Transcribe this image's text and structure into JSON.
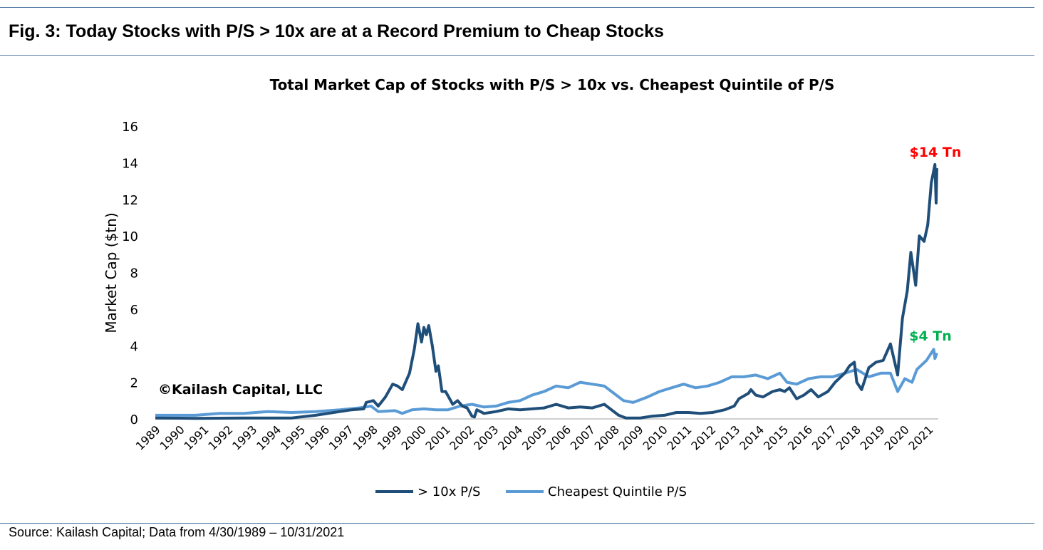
{
  "figure": {
    "title": "Fig. 3: Today Stocks with P/S > 10x are at a Record Premium to Cheap Stocks",
    "source": "Source: Kailash Capital; Data from 4/30/1989 – 10/31/2021"
  },
  "chart_data": {
    "type": "line",
    "title": "Total Market Cap of Stocks with P/S > 10x vs. Cheapest Quintile of P/S",
    "xlabel": "",
    "ylabel": "Market Cap ($tn)",
    "ylim": [
      0,
      16
    ],
    "yticks": [
      0,
      2,
      4,
      6,
      8,
      10,
      12,
      14,
      16
    ],
    "xlim": [
      1989.33,
      2021.83
    ],
    "xticks": [
      "1989",
      "1990",
      "1991",
      "1992",
      "1993",
      "1994",
      "1995",
      "1996",
      "1997",
      "1998",
      "1999",
      "2000",
      "2001",
      "2002",
      "2003",
      "2004",
      "2005",
      "2006",
      "2007",
      "2008",
      "2009",
      "2010",
      "2011",
      "2012",
      "2013",
      "2014",
      "2015",
      "2016",
      "2017",
      "2018",
      "2019",
      "2020",
      "2021"
    ],
    "grid": false,
    "legend": "bottom",
    "watermark": "©Kailash Capital, LLC",
    "annotations": [
      {
        "text": "$14 Tn",
        "color": "#ff0000",
        "series": 0
      },
      {
        "text": "$4 Tn",
        "color": "#00b050",
        "series": 1
      }
    ],
    "series": [
      {
        "name": "> 10x P/S",
        "color": "#1f4e79",
        "x": [
          1989.33,
          1991,
          1993,
          1995,
          1996,
          1996.5,
          1997,
          1997.5,
          1998,
          1998.1,
          1998.4,
          1998.6,
          1998.9,
          1999.2,
          1999.4,
          1999.6,
          1999.9,
          2000.1,
          2000.25,
          2000.4,
          2000.5,
          2000.6,
          2000.7,
          2000.85,
          2001.0,
          2001.1,
          2001.25,
          2001.4,
          2001.7,
          2001.9,
          2002.1,
          2002.3,
          2002.5,
          2002.6,
          2002.7,
          2003,
          2003.5,
          2004,
          2004.5,
          2005,
          2005.5,
          2006,
          2006.5,
          2007,
          2007.5,
          2008,
          2008.3,
          2008.6,
          2008.9,
          2009.5,
          2010,
          2010.5,
          2011,
          2011.5,
          2012,
          2012.5,
          2013,
          2013.4,
          2013.6,
          2014,
          2014.1,
          2014.3,
          2014.6,
          2015,
          2015.3,
          2015.5,
          2015.7,
          2016,
          2016.3,
          2016.6,
          2016.9,
          2017.3,
          2017.6,
          2018,
          2018.2,
          2018.4,
          2018.5,
          2018.7,
          2019,
          2019.3,
          2019.6,
          2019.9,
          2020.2,
          2020.4,
          2020.6,
          2020.75,
          2020.95,
          2021.1,
          2021.3,
          2021.45,
          2021.6,
          2021.75,
          2021.8,
          2021.83
        ],
        "values": [
          0.05,
          0.03,
          0.05,
          0.05,
          0.2,
          0.3,
          0.4,
          0.5,
          0.55,
          0.9,
          1.0,
          0.7,
          1.2,
          1.9,
          1.8,
          1.6,
          2.5,
          3.8,
          5.2,
          4.2,
          5.0,
          4.6,
          5.1,
          4.0,
          2.6,
          2.9,
          1.5,
          1.5,
          0.8,
          1.0,
          0.7,
          0.6,
          0.15,
          0.1,
          0.5,
          0.3,
          0.4,
          0.55,
          0.5,
          0.55,
          0.6,
          0.8,
          0.6,
          0.65,
          0.6,
          0.8,
          0.5,
          0.2,
          0.05,
          0.05,
          0.15,
          0.2,
          0.35,
          0.35,
          0.3,
          0.35,
          0.5,
          0.7,
          1.1,
          1.4,
          1.6,
          1.3,
          1.2,
          1.5,
          1.6,
          1.5,
          1.7,
          1.1,
          1.3,
          1.6,
          1.2,
          1.5,
          2.0,
          2.5,
          2.9,
          3.1,
          2.0,
          1.6,
          2.8,
          3.1,
          3.2,
          4.1,
          2.4,
          5.5,
          7.0,
          9.1,
          7.3,
          10.0,
          9.7,
          10.6,
          12.9,
          13.9,
          11.8,
          13.7
        ]
      },
      {
        "name": "Cheapest Quintile P/S",
        "color": "#5b9bd5",
        "x": [
          1989.33,
          1991,
          1992,
          1993,
          1994,
          1995,
          1996,
          1997,
          1997.8,
          1998.3,
          1998.6,
          1999.3,
          1999.6,
          2000,
          2000.5,
          2001,
          2001.5,
          2002,
          2002.5,
          2003,
          2003.5,
          2004,
          2004.5,
          2005,
          2005.5,
          2006,
          2006.5,
          2007,
          2007.5,
          2008,
          2008.3,
          2008.8,
          2009.2,
          2009.8,
          2010.3,
          2010.8,
          2011.3,
          2011.8,
          2012.3,
          2012.8,
          2013.3,
          2013.8,
          2014.3,
          2014.8,
          2015.3,
          2015.6,
          2016,
          2016.5,
          2017,
          2017.5,
          2018,
          2018.5,
          2019,
          2019.5,
          2019.9,
          2020.2,
          2020.5,
          2020.8,
          2021,
          2021.4,
          2021.7,
          2021.75,
          2021.83
        ],
        "values": [
          0.2,
          0.2,
          0.3,
          0.3,
          0.4,
          0.35,
          0.4,
          0.5,
          0.6,
          0.7,
          0.4,
          0.45,
          0.3,
          0.5,
          0.55,
          0.5,
          0.5,
          0.7,
          0.8,
          0.65,
          0.7,
          0.9,
          1.0,
          1.3,
          1.5,
          1.8,
          1.7,
          2.0,
          1.9,
          1.8,
          1.5,
          1.0,
          0.9,
          1.2,
          1.5,
          1.7,
          1.9,
          1.7,
          1.8,
          2.0,
          2.3,
          2.3,
          2.4,
          2.2,
          2.5,
          2.0,
          1.9,
          2.2,
          2.3,
          2.3,
          2.5,
          2.7,
          2.3,
          2.5,
          2.5,
          1.5,
          2.2,
          2.0,
          2.7,
          3.2,
          3.8,
          3.3,
          3.6
        ]
      }
    ]
  }
}
